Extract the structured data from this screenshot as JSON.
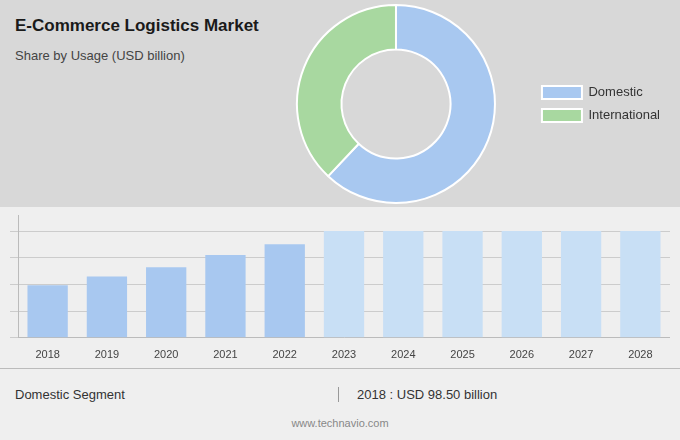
{
  "chart_data": [
    {
      "type": "pie",
      "title": "E-Commerce Logistics Market",
      "subtitle": "Share by Usage (USD billion)",
      "categories": [
        "Domestic",
        "International"
      ],
      "values": [
        62,
        38
      ],
      "colors": [
        "#a8c8f0",
        "#a8d8a0"
      ],
      "legend": "right"
    },
    {
      "type": "bar",
      "categories": [
        "2018",
        "2019",
        "2020",
        "2021",
        "2022",
        "2023",
        "2024",
        "2025",
        "2026",
        "2027",
        "2028"
      ],
      "values": [
        98.5,
        115,
        132,
        155,
        175,
        200,
        200,
        200,
        200,
        200,
        200
      ],
      "colors": [
        "#a8c8f0",
        "#a8c8f0",
        "#a8c8f0",
        "#a8c8f0",
        "#a8c8f0",
        "#c8dff5",
        "#c8dff5",
        "#c8dff5",
        "#c8dff5",
        "#c8dff5",
        "#c8dff5"
      ],
      "ylim": [
        0,
        230
      ],
      "yticks": [
        0,
        50,
        100,
        150,
        200
      ],
      "grid": true,
      "tick_labels": "x",
      "annotations": [
        "Domestic Segment",
        "2018 : USD 98.50 billion",
        "www.technavio.com"
      ]
    }
  ]
}
